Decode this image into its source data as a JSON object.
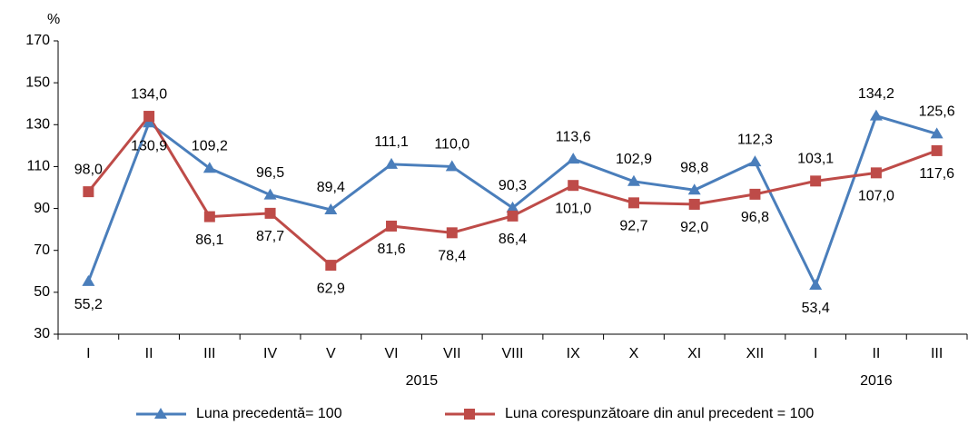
{
  "chart_data": {
    "type": "line",
    "y_unit": "%",
    "categories": [
      "I",
      "II",
      "III",
      "IV",
      "V",
      "VI",
      "VII",
      "VIII",
      "IX",
      "X",
      "XI",
      "XII",
      "I",
      "II",
      "III"
    ],
    "groups": [
      {
        "label": "2015",
        "count": 12
      },
      {
        "label": "2016",
        "count": 3
      }
    ],
    "series": [
      {
        "name": "Luna precedentă= 100",
        "color": "#4a7ebb",
        "marker": "triangle",
        "values": [
          55.2,
          130.9,
          109.2,
          96.5,
          89.4,
          111.1,
          110.0,
          90.3,
          113.6,
          102.9,
          98.8,
          112.3,
          53.4,
          134.2,
          125.6
        ],
        "value_labels": [
          "55,2",
          "130,9",
          "109,2",
          "96,5",
          "89,4",
          "111,1",
          "110,0",
          "90,3",
          "113,6",
          "102,9",
          "98,8",
          "112,3",
          "53,4",
          "134,2",
          "125,6"
        ]
      },
      {
        "name": "Luna corespunzătoare din anul precedent = 100",
        "color": "#be4b48",
        "marker": "square",
        "values": [
          98.0,
          134.0,
          86.1,
          87.7,
          62.9,
          81.6,
          78.4,
          86.4,
          101.0,
          92.7,
          92.0,
          96.8,
          103.1,
          107.0,
          117.6
        ],
        "value_labels": [
          "98,0",
          "134,0",
          "86,1",
          "87,7",
          "62,9",
          "81,6",
          "78,4",
          "86,4",
          "101,0",
          "92,7",
          "92,0",
          "96,8",
          "103,1",
          "107,0",
          "117,6"
        ]
      }
    ],
    "ylim": [
      30,
      170
    ],
    "yticks": [
      30,
      50,
      70,
      90,
      110,
      130,
      150,
      170
    ],
    "grid": false,
    "legend": "bottom"
  }
}
